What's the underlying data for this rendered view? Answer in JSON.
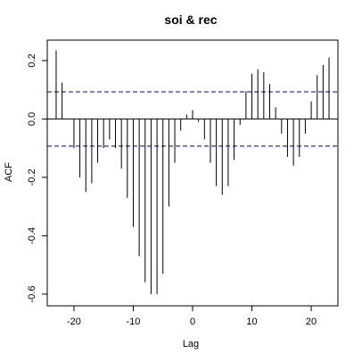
{
  "chart_data": {
    "type": "bar",
    "title": "soi & rec",
    "xlabel": "Lag",
    "ylabel": "ACF",
    "xlim": [
      -24.5,
      24.5
    ],
    "ylim": [
      -0.64,
      0.27
    ],
    "xticks": [
      -20,
      -10,
      0,
      10,
      20
    ],
    "xtick_labels": [
      "-20",
      "-10",
      "0",
      "10",
      "20"
    ],
    "yticks": [
      -0.6,
      -0.4,
      -0.2,
      0.0,
      0.2
    ],
    "ytick_labels": [
      "-0.6",
      "-0.4",
      "-0.2",
      "0.0",
      "0.2"
    ],
    "grid": false,
    "confidence_limits": [
      0.093,
      -0.093
    ],
    "confidence_line_color": "#00008b",
    "spike_color": "#000000",
    "lags": [
      -23,
      -22,
      -21,
      -20,
      -19,
      -18,
      -17,
      -16,
      -15,
      -14,
      -13,
      -12,
      -11,
      -10,
      -9,
      -8,
      -7,
      -6,
      -5,
      -4,
      -3,
      -2,
      -1,
      0,
      1,
      2,
      3,
      4,
      5,
      6,
      7,
      8,
      9,
      10,
      11,
      12,
      13,
      14,
      15,
      16,
      17,
      18,
      19,
      20,
      21,
      22,
      23
    ],
    "values": [
      0.235,
      0.125,
      0.0,
      -0.1,
      -0.2,
      -0.25,
      -0.22,
      -0.15,
      -0.1,
      -0.07,
      -0.1,
      -0.17,
      -0.27,
      -0.37,
      -0.47,
      -0.56,
      -0.6,
      -0.6,
      -0.53,
      -0.3,
      -0.15,
      -0.04,
      0.015,
      0.03,
      -0.01,
      -0.07,
      -0.15,
      -0.23,
      -0.26,
      -0.23,
      -0.14,
      -0.02,
      0.095,
      0.155,
      0.17,
      0.16,
      0.12,
      0.04,
      -0.05,
      -0.13,
      -0.16,
      -0.13,
      -0.05,
      0.06,
      0.15,
      0.185,
      0.21
    ]
  }
}
